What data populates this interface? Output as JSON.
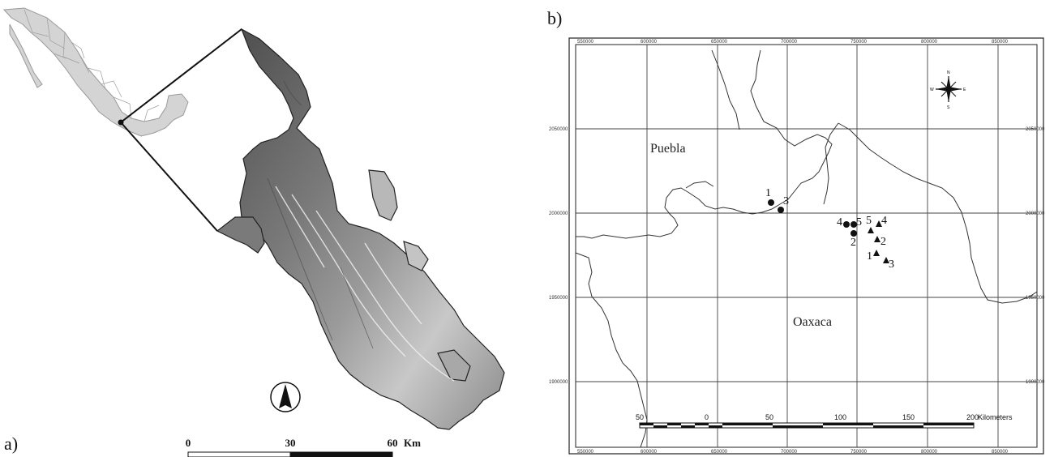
{
  "panel_a": {
    "label": "a)",
    "scale_bar": {
      "ticks": [
        "0",
        "30",
        "60"
      ],
      "unit": "Km"
    },
    "north_arrow": "north-arrow-icon",
    "colors": {
      "relief_dark": "#5c5c5c",
      "relief_light": "#e6e6e6",
      "mexico_fill": "#d6d6d6"
    }
  },
  "panel_b": {
    "label": "b)",
    "regions": {
      "north": "Puebla",
      "south": "Oaxaca"
    },
    "x_ticks_top": [
      "550000",
      "600000",
      "650000",
      "700000",
      "750000",
      "800000",
      "850000"
    ],
    "x_ticks_bottom": [
      "550000",
      "600000",
      "650000",
      "700000",
      "750000",
      "800000",
      "850000"
    ],
    "y_ticks_left": [
      "2050000",
      "2000000",
      "1950000",
      "1900000"
    ],
    "y_ticks_right": [
      "2050000",
      "2000000",
      "1950000",
      "1900000"
    ],
    "scale_bar": {
      "ticks": [
        "50",
        "0",
        "50",
        "100",
        "150",
        "200"
      ],
      "unit": "Kilometers"
    },
    "compass": {
      "n": "N",
      "s": "S",
      "e": "E",
      "w": "W"
    },
    "sites_circle": [
      {
        "label": "1"
      },
      {
        "label": "2"
      },
      {
        "label": "3"
      },
      {
        "label": "4"
      },
      {
        "label": "5"
      }
    ],
    "sites_triangle": [
      {
        "label": "1"
      },
      {
        "label": "2"
      },
      {
        "label": "3"
      },
      {
        "label": "4"
      },
      {
        "label": "5"
      }
    ]
  }
}
